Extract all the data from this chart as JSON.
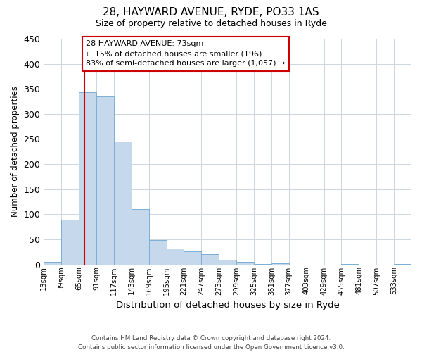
{
  "title": "28, HAYWARD AVENUE, RYDE, PO33 1AS",
  "subtitle": "Size of property relative to detached houses in Ryde",
  "xlabel": "Distribution of detached houses by size in Ryde",
  "ylabel": "Number of detached properties",
  "bin_labels": [
    "13sqm",
    "39sqm",
    "65sqm",
    "91sqm",
    "117sqm",
    "143sqm",
    "169sqm",
    "195sqm",
    "221sqm",
    "247sqm",
    "273sqm",
    "299sqm",
    "325sqm",
    "351sqm",
    "377sqm",
    "403sqm",
    "429sqm",
    "455sqm",
    "481sqm",
    "507sqm",
    "533sqm"
  ],
  "bar_values": [
    5,
    89,
    343,
    335,
    245,
    110,
    49,
    32,
    26,
    21,
    9,
    5,
    1,
    2,
    0,
    0,
    0,
    1,
    0,
    0,
    1
  ],
  "bar_color": "#c5d8ec",
  "bar_edge_color": "#7bafd4",
  "vline_x_bin": 2,
  "vline_color": "#cc0000",
  "annotation_line1": "28 HAYWARD AVENUE: 73sqm",
  "annotation_line2": "← 15% of detached houses are smaller (196)",
  "annotation_line3": "83% of semi-detached houses are larger (1,057) →",
  "annotation_box_color": "#ffffff",
  "annotation_box_edge": "#cc0000",
  "ylim": [
    0,
    450
  ],
  "yticks": [
    0,
    50,
    100,
    150,
    200,
    250,
    300,
    350,
    400,
    450
  ],
  "footer_line1": "Contains HM Land Registry data © Crown copyright and database right 2024.",
  "footer_line2": "Contains public sector information licensed under the Open Government Licence v3.0.",
  "background_color": "#ffffff",
  "grid_color": "#cdd5e0"
}
